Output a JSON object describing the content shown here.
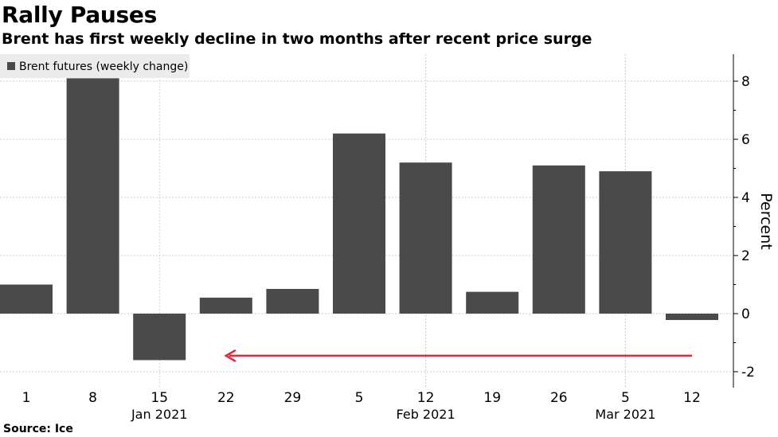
{
  "chart_data": {
    "type": "bar",
    "title": "Rally Pauses",
    "subtitle": "Brent has first weekly decline in two months after recent price surge",
    "source": "Source: Ice",
    "legend": "Brent futures (weekly change)",
    "ylabel": "Percent",
    "ylim": [
      -2.5,
      9
    ],
    "yticks": [
      8,
      6,
      4,
      2,
      0,
      -2
    ],
    "categories": [
      "1",
      "8",
      "15",
      "22",
      "29",
      "5",
      "12",
      "19",
      "26",
      "5",
      "12"
    ],
    "months": [
      {
        "label": "Jan 2021",
        "category_index": 2
      },
      {
        "label": "Feb 2021",
        "category_index": 6
      },
      {
        "label": "Mar 2021",
        "category_index": 9
      }
    ],
    "series": [
      {
        "name": "Brent futures (weekly change)",
        "values": [
          1.0,
          8.1,
          -1.6,
          0.55,
          0.85,
          6.2,
          5.2,
          0.75,
          5.1,
          4.9,
          -0.22
        ]
      }
    ],
    "bar_color": "#4a4a4a",
    "annotation": {
      "type": "arrow",
      "color": "#e8233a",
      "from_category_index": 10,
      "to_category_index": 3,
      "y_value": -1.45
    }
  }
}
